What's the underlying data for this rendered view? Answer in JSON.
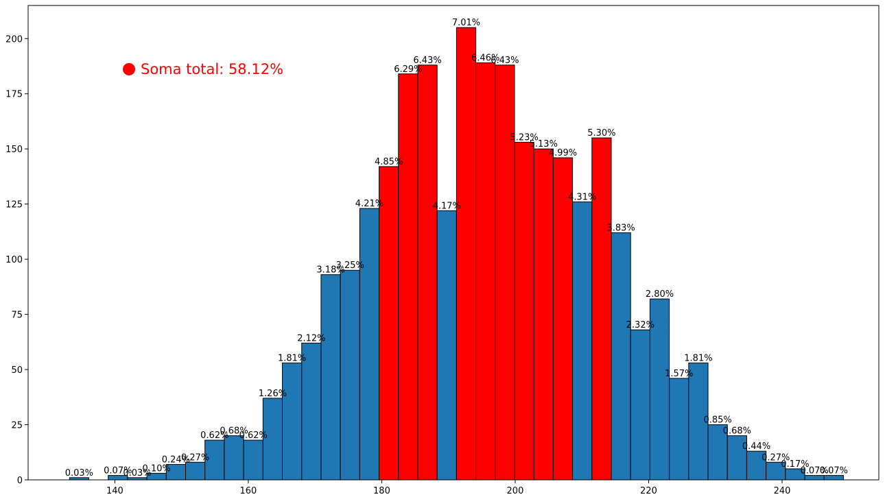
{
  "chart_data": {
    "type": "bar",
    "title": "",
    "xlabel": "",
    "ylabel": "",
    "xlim": [
      127,
      254.5
    ],
    "ylim": [
      0,
      215
    ],
    "xticks": [
      140,
      160,
      180,
      200,
      220,
      240
    ],
    "yticks": [
      0,
      25,
      50,
      75,
      100,
      125,
      150,
      175,
      200
    ],
    "grid": false,
    "colors": {
      "normal": "#1f77b4",
      "highlight": "#ff0000",
      "edge": "#000000"
    },
    "annotation": {
      "text": "Soma total: 58.12%",
      "color": "#ff0000"
    },
    "bins": [
      {
        "x0": 133.2,
        "x1": 136.1,
        "value": 1,
        "label": "0.03%",
        "highlight": false
      },
      {
        "x0": 136.1,
        "x1": 139.0,
        "value": 0,
        "label": "",
        "highlight": false
      },
      {
        "x0": 139.0,
        "x1": 141.9,
        "value": 2,
        "label": "0.07%",
        "highlight": false
      },
      {
        "x0": 141.9,
        "x1": 144.8,
        "value": 1,
        "label": "0.03%",
        "highlight": false
      },
      {
        "x0": 144.8,
        "x1": 147.7,
        "value": 3,
        "label": "0.10%",
        "highlight": false
      },
      {
        "x0": 147.7,
        "x1": 150.6,
        "value": 7,
        "label": "0.24%",
        "highlight": false
      },
      {
        "x0": 150.6,
        "x1": 153.5,
        "value": 8,
        "label": "0.27%",
        "highlight": false
      },
      {
        "x0": 153.5,
        "x1": 156.4,
        "value": 18,
        "label": "0.62%",
        "highlight": false
      },
      {
        "x0": 156.4,
        "x1": 159.3,
        "value": 20,
        "label": "0.68%",
        "highlight": false
      },
      {
        "x0": 159.3,
        "x1": 162.2,
        "value": 18,
        "label": "0.62%",
        "highlight": false
      },
      {
        "x0": 162.2,
        "x1": 165.1,
        "value": 37,
        "label": "1.26%",
        "highlight": false
      },
      {
        "x0": 165.1,
        "x1": 168.0,
        "value": 53,
        "label": "1.81%",
        "highlight": false
      },
      {
        "x0": 168.0,
        "x1": 170.9,
        "value": 62,
        "label": "2.12%",
        "highlight": false
      },
      {
        "x0": 170.9,
        "x1": 173.8,
        "value": 93,
        "label": "3.18%",
        "highlight": false
      },
      {
        "x0": 173.8,
        "x1": 176.7,
        "value": 95,
        "label": "3.25%",
        "highlight": false
      },
      {
        "x0": 176.7,
        "x1": 179.6,
        "value": 123,
        "label": "4.21%",
        "highlight": false
      },
      {
        "x0": 179.6,
        "x1": 182.5,
        "value": 142,
        "label": "4.85%",
        "highlight": true
      },
      {
        "x0": 182.5,
        "x1": 185.4,
        "value": 184,
        "label": "6.29%",
        "highlight": true
      },
      {
        "x0": 185.4,
        "x1": 188.3,
        "value": 188,
        "label": "6.43%",
        "highlight": true
      },
      {
        "x0": 188.3,
        "x1": 191.2,
        "value": 122,
        "label": "4.17%",
        "highlight": false
      },
      {
        "x0": 191.2,
        "x1": 194.1,
        "value": 205,
        "label": "7.01%",
        "highlight": true
      },
      {
        "x0": 194.1,
        "x1": 197.0,
        "value": 189,
        "label": "6.46%",
        "highlight": true
      },
      {
        "x0": 197.0,
        "x1": 199.9,
        "value": 188,
        "label": "6.43%",
        "highlight": true
      },
      {
        "x0": 199.9,
        "x1": 202.8,
        "value": 153,
        "label": "5.23%",
        "highlight": true
      },
      {
        "x0": 202.8,
        "x1": 205.7,
        "value": 150,
        "label": "5.13%",
        "highlight": true
      },
      {
        "x0": 205.7,
        "x1": 208.6,
        "value": 146,
        "label": "4.99%",
        "highlight": true
      },
      {
        "x0": 208.6,
        "x1": 211.5,
        "value": 126,
        "label": "4.31%",
        "highlight": false
      },
      {
        "x0": 211.5,
        "x1": 214.4,
        "value": 155,
        "label": "5.30%",
        "highlight": true
      },
      {
        "x0": 214.4,
        "x1": 217.3,
        "value": 112,
        "label": "3.83%",
        "highlight": false
      },
      {
        "x0": 217.3,
        "x1": 220.2,
        "value": 68,
        "label": "2.32%",
        "highlight": false
      },
      {
        "x0": 220.2,
        "x1": 223.1,
        "value": 82,
        "label": "2.80%",
        "highlight": false
      },
      {
        "x0": 223.1,
        "x1": 226.0,
        "value": 46,
        "label": "1.57%",
        "highlight": false
      },
      {
        "x0": 226.0,
        "x1": 228.9,
        "value": 53,
        "label": "1.81%",
        "highlight": false
      },
      {
        "x0": 228.9,
        "x1": 231.8,
        "value": 25,
        "label": "0.85%",
        "highlight": false
      },
      {
        "x0": 231.8,
        "x1": 234.7,
        "value": 20,
        "label": "0.68%",
        "highlight": false
      },
      {
        "x0": 234.7,
        "x1": 237.6,
        "value": 13,
        "label": "0.44%",
        "highlight": false
      },
      {
        "x0": 237.6,
        "x1": 240.5,
        "value": 8,
        "label": "0.27%",
        "highlight": false
      },
      {
        "x0": 240.5,
        "x1": 243.4,
        "value": 5,
        "label": "0.17%",
        "highlight": false
      },
      {
        "x0": 243.4,
        "x1": 246.3,
        "value": 2,
        "label": "0.07%",
        "highlight": false
      },
      {
        "x0": 246.3,
        "x1": 249.2,
        "value": 2,
        "label": "0.07%",
        "highlight": false
      }
    ]
  }
}
